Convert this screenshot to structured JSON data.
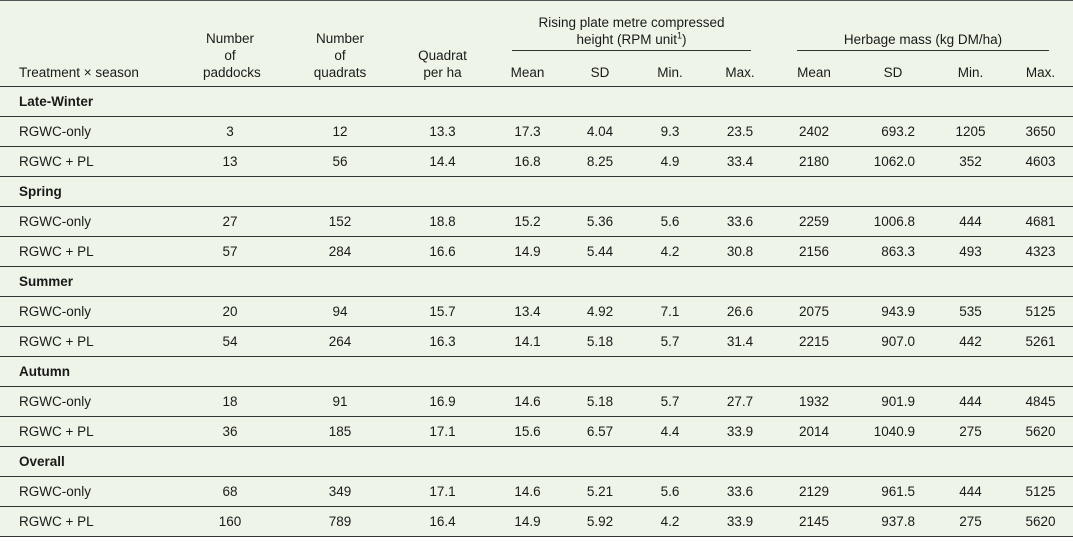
{
  "header": {
    "group_rpm": {
      "label": "Rising plate metre compressed height (RPM unit",
      "footnote": "1",
      "close": ")"
    },
    "group_herbage": "Herbage mass (kg DM/ha)",
    "columns": [
      "Treatment × season",
      "Number of paddocks",
      "Number of quadrats",
      "Quadrat per ha",
      "Mean",
      "SD",
      "Min.",
      "Max.",
      "Mean",
      "SD",
      "Min.",
      "Max."
    ]
  },
  "sections": [
    {
      "title": "Late-Winter",
      "rows": [
        [
          "RGWC-only",
          "3",
          "12",
          "13.3",
          "17.3",
          "4.04",
          "9.3",
          "23.5",
          "2402",
          "693.2",
          "1205",
          "3650"
        ],
        [
          "RGWC + PL",
          "13",
          "56",
          "14.4",
          "16.8",
          "8.25",
          "4.9",
          "33.4",
          "2180",
          "1062.0",
          "352",
          "4603"
        ]
      ]
    },
    {
      "title": "Spring",
      "rows": [
        [
          "RGWC-only",
          "27",
          "152",
          "18.8",
          "15.2",
          "5.36",
          "5.6",
          "33.6",
          "2259",
          "1006.8",
          "444",
          "4681"
        ],
        [
          "RGWC + PL",
          "57",
          "284",
          "16.6",
          "14.9",
          "5.44",
          "4.2",
          "30.8",
          "2156",
          "863.3",
          "493",
          "4323"
        ]
      ]
    },
    {
      "title": "Summer",
      "rows": [
        [
          "RGWC-only",
          "20",
          "94",
          "15.7",
          "13.4",
          "4.92",
          "7.1",
          "26.6",
          "2075",
          "943.9",
          "535",
          "5125"
        ],
        [
          "RGWC + PL",
          "54",
          "264",
          "16.3",
          "14.1",
          "5.18",
          "5.7",
          "31.4",
          "2215",
          "907.0",
          "442",
          "5261"
        ]
      ]
    },
    {
      "title": "Autumn",
      "rows": [
        [
          "RGWC-only",
          "18",
          "91",
          "16.9",
          "14.6",
          "5.18",
          "5.7",
          "27.7",
          "1932",
          "901.9",
          "444",
          "4845"
        ],
        [
          "RGWC + PL",
          "36",
          "185",
          "17.1",
          "15.6",
          "6.57",
          "4.4",
          "33.9",
          "2014",
          "1040.9",
          "275",
          "5620"
        ]
      ]
    },
    {
      "title": "Overall",
      "rows": [
        [
          "RGWC-only",
          "68",
          "349",
          "17.1",
          "14.6",
          "5.21",
          "5.6",
          "33.6",
          "2129",
          "961.5",
          "444",
          "5125"
        ],
        [
          "RGWC + PL",
          "160",
          "789",
          "16.4",
          "14.9",
          "5.92",
          "4.2",
          "33.9",
          "2145",
          "937.8",
          "275",
          "5620"
        ]
      ]
    }
  ]
}
